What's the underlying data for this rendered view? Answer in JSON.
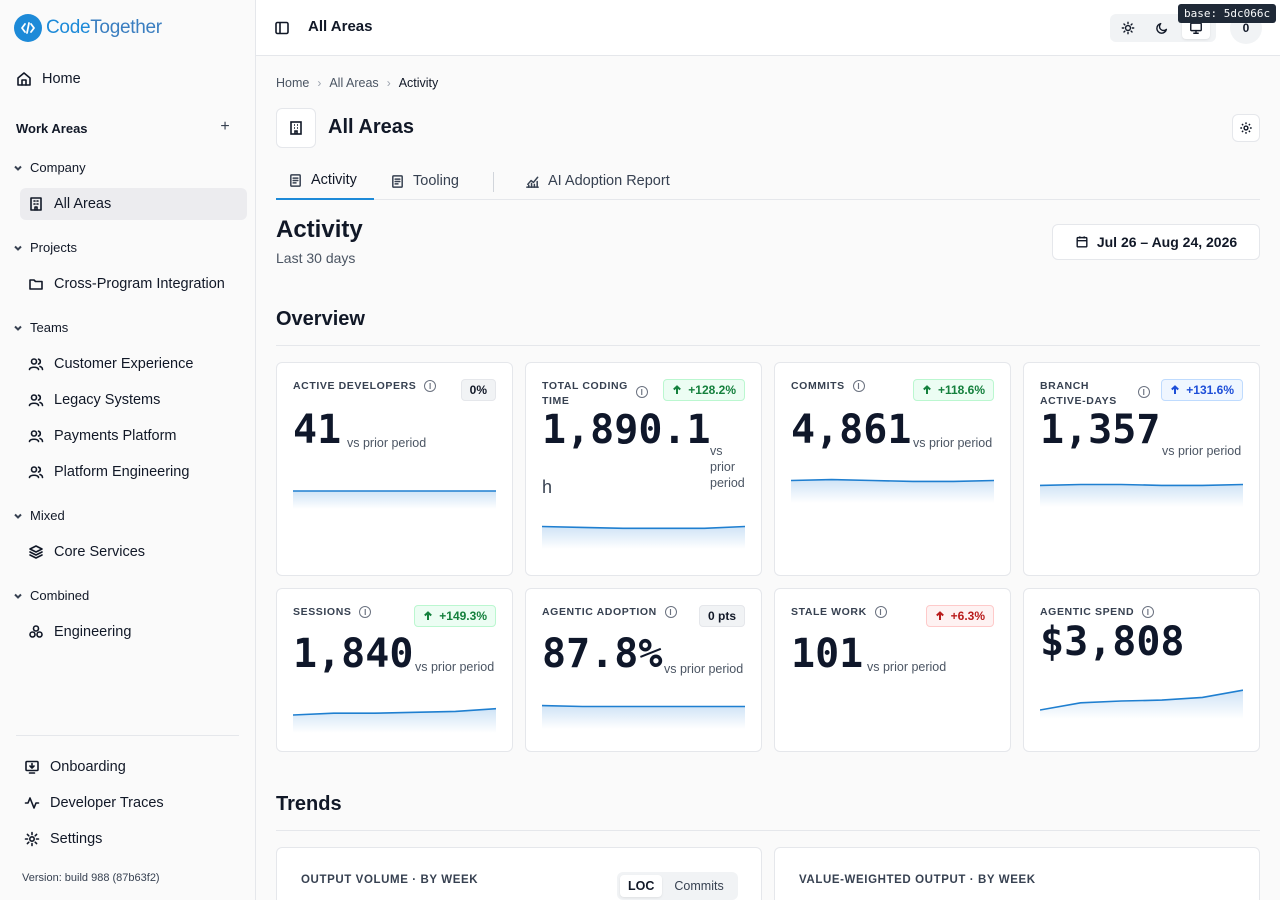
{
  "app": {
    "logo_code": "Code",
    "logo_together": "Together",
    "base_tag": "base: 5dc066c"
  },
  "sidebar": {
    "home": "Home",
    "work_areas": "Work Areas",
    "groups": {
      "company": "Company",
      "projects": "Projects",
      "teams": "Teams",
      "mixed": "Mixed",
      "combined": "Combined"
    },
    "items": {
      "all_areas": "All Areas",
      "cross_program": "Cross-Program Integration",
      "customer_experience": "Customer Experience",
      "legacy_systems": "Legacy Systems",
      "payments_platform": "Payments Platform",
      "platform_engineering": "Platform Engineering",
      "core_services": "Core Services",
      "engineering": "Engineering"
    },
    "footer": {
      "onboarding": "Onboarding",
      "developer_traces": "Developer Traces",
      "settings": "Settings",
      "version": "Version: build 988 (87b63f2)"
    }
  },
  "header": {
    "title": "All Areas",
    "avatar_count": "0"
  },
  "breadcrumb": [
    "Home",
    "All Areas",
    "Activity"
  ],
  "page": {
    "title": "All Areas",
    "tabs": [
      "Activity",
      "Tooling",
      "AI Adoption Report"
    ],
    "section_title": "Activity",
    "section_sub": "Last 30 days",
    "date_range": "Jul 26 – Aug 24, 2026",
    "overview": "Overview",
    "trends": "Trends"
  },
  "colors": {
    "accent": "#1d8ad8",
    "spark_line": "#1f7fd0"
  },
  "cards": [
    {
      "label_1": "ACTIVE DEVELOPERS",
      "label_2": "",
      "badge": "0%",
      "badge_type": "neutral",
      "value": "41",
      "unit": "",
      "vs": "vs prior period",
      "spark": [
        50,
        50,
        50,
        50,
        50,
        50
      ]
    },
    {
      "label_1": "TOTAL CODING",
      "label_2": "TIME",
      "badge": "+128.2%",
      "badge_type": "green",
      "value": "1,890.1",
      "unit": "h",
      "vs": "vs prior period",
      "spark": [
        55,
        54,
        53,
        53,
        53,
        55
      ]
    },
    {
      "label_1": "COMMITS",
      "label_2": "",
      "badge": "+118.6%",
      "badge_type": "green",
      "value": "4,861",
      "unit": "",
      "vs": "vs prior period",
      "spark": [
        55,
        56,
        55,
        54,
        54,
        55
      ]
    },
    {
      "label_1": "BRANCH",
      "label_2": "ACTIVE-DAYS",
      "badge": "+131.6%",
      "badge_type": "blue",
      "value": "1,357",
      "unit": "",
      "vs": "vs prior period",
      "spark": [
        54,
        55,
        55,
        54,
        54,
        55
      ]
    },
    {
      "label_1": "SESSIONS",
      "label_2": "",
      "badge": "+149.3%",
      "badge_type": "green",
      "value": "1,840",
      "unit": "",
      "vs": "vs prior period",
      "spark": [
        50,
        52,
        52,
        53,
        54,
        57
      ]
    },
    {
      "label_1": "AGENTIC ADOPTION",
      "label_2": "",
      "badge": "0 pts",
      "badge_type": "neutral",
      "value": "87.8%",
      "unit": "",
      "vs": "vs prior period",
      "spark": [
        56,
        55,
        55,
        55,
        55,
        55
      ]
    },
    {
      "label_1": "STALE WORK",
      "label_2": "",
      "badge": "+6.3%",
      "badge_type": "red",
      "value": "101",
      "unit": "",
      "vs": "vs prior period",
      "spark": []
    },
    {
      "label_1": "AGENTIC SPEND",
      "label_2": "",
      "badge": "",
      "badge_type": "",
      "value": "$3,808",
      "unit": "",
      "vs": "",
      "spark": [
        40,
        48,
        50,
        51,
        54,
        62
      ]
    }
  ],
  "trends": {
    "output_volume": "OUTPUT VOLUME · BY WEEK",
    "value_weighted": "VALUE-WEIGHTED OUTPUT · BY WEEK",
    "seg_loc": "LOC",
    "seg_commits": "Commits"
  }
}
